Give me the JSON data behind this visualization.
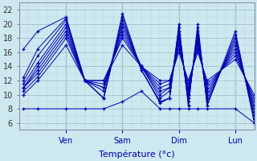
{
  "xlabel": "Température (°c)",
  "xlim": [
    0,
    100
  ],
  "ylim": [
    5,
    23
  ],
  "yticks": [
    6,
    8,
    10,
    12,
    14,
    16,
    18,
    20,
    22
  ],
  "xtick_positions": [
    20,
    44,
    68,
    92
  ],
  "xtick_labels": [
    "Ven",
    "Sam",
    "Dim",
    "Lun"
  ],
  "background_color": "#cde8ee",
  "grid_major_color": "#a8c8d0",
  "grid_minor_color": "#bcd8e0",
  "line_color": "#0000bb",
  "series": [
    [
      16.5,
      19.0,
      21.0,
      12.0,
      9.5,
      21.5,
      13.5,
      8.8,
      9.5,
      20.0,
      8.5,
      20.0,
      8.5,
      19.0,
      6.0
    ],
    [
      12.5,
      16.5,
      20.8,
      12.0,
      9.5,
      21.0,
      13.5,
      9.0,
      9.5,
      19.5,
      8.5,
      19.5,
      8.5,
      18.5,
      6.5
    ],
    [
      12.0,
      15.5,
      20.5,
      12.0,
      9.5,
      20.5,
      13.5,
      9.0,
      9.5,
      19.0,
      9.0,
      19.0,
      9.0,
      18.0,
      7.0
    ],
    [
      11.5,
      14.5,
      20.0,
      12.0,
      10.5,
      20.0,
      14.0,
      9.5,
      10.5,
      18.5,
      9.5,
      18.5,
      9.5,
      17.5,
      7.5
    ],
    [
      11.0,
      14.0,
      19.5,
      12.0,
      11.0,
      19.5,
      14.0,
      10.0,
      11.0,
      18.0,
      10.0,
      18.0,
      10.0,
      17.0,
      8.0
    ],
    [
      11.0,
      13.5,
      19.0,
      12.0,
      11.0,
      19.0,
      14.0,
      10.5,
      11.0,
      17.5,
      10.5,
      17.5,
      10.5,
      16.5,
      8.5
    ],
    [
      11.0,
      13.0,
      18.5,
      12.0,
      11.5,
      18.5,
      14.0,
      11.0,
      11.5,
      17.0,
      11.0,
      17.0,
      11.0,
      16.0,
      9.0
    ],
    [
      10.5,
      12.5,
      18.0,
      12.0,
      12.0,
      18.0,
      14.0,
      11.5,
      12.0,
      16.5,
      11.5,
      16.5,
      11.5,
      15.5,
      9.5
    ],
    [
      10.0,
      12.0,
      17.0,
      12.0,
      12.0,
      17.0,
      14.0,
      12.0,
      12.0,
      16.0,
      12.0,
      16.0,
      12.0,
      15.0,
      10.0
    ],
    [
      8.0,
      8.0,
      8.0,
      8.0,
      8.0,
      9.0,
      10.5,
      8.0,
      8.0,
      8.0,
      8.0,
      8.0,
      8.0,
      8.0,
      6.0
    ]
  ],
  "x_points": [
    2,
    8,
    20,
    28,
    36,
    44,
    52,
    60,
    64,
    68,
    72,
    76,
    80,
    92,
    100
  ]
}
